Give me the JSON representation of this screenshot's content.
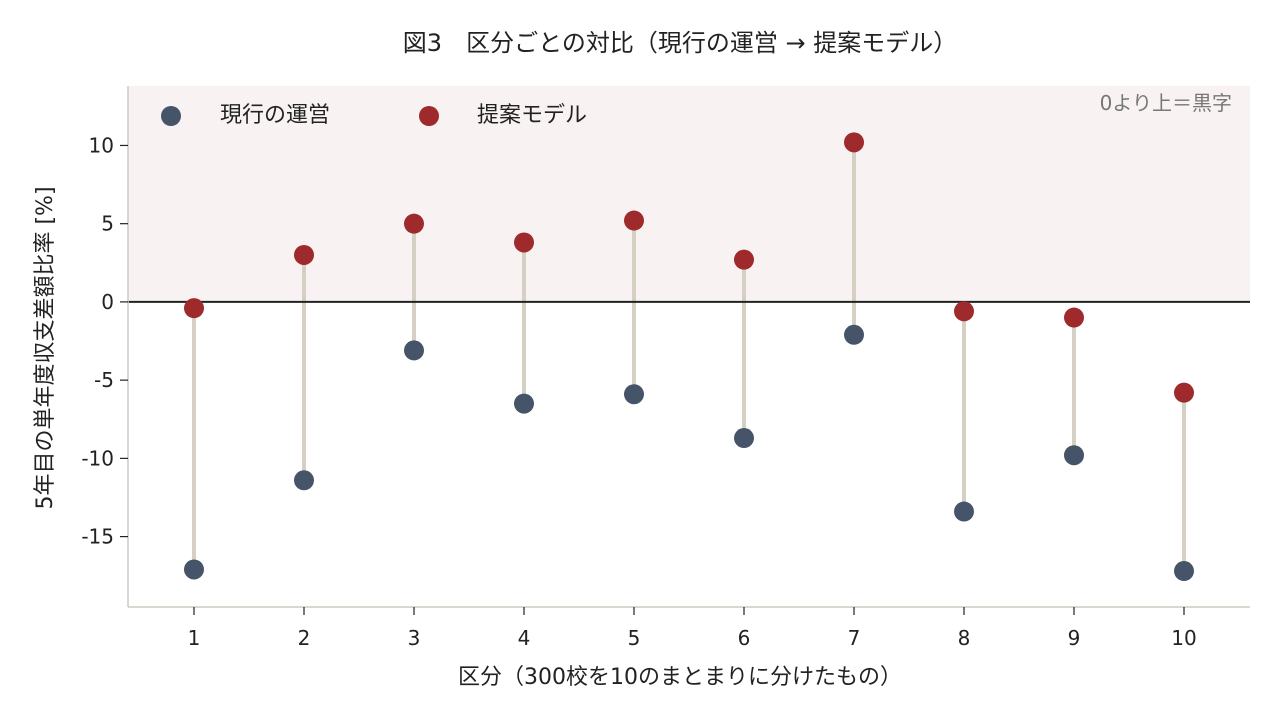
{
  "chart_data": {
    "type": "dumbbell",
    "title": "図3　区分ごとの対比（現行の運営 → 提案モデル）",
    "xlabel": "区分（300校を10のまとまりに分けたもの）",
    "ylabel": "5年目の単年度収支差額比率 [%]",
    "categories": [
      "1",
      "2",
      "3",
      "4",
      "5",
      "6",
      "7",
      "8",
      "9",
      "10"
    ],
    "ylim": [
      -19.5,
      13.8
    ],
    "yticks": [
      10,
      5,
      0,
      -5,
      -10,
      -15
    ],
    "ytick_labels": [
      "10",
      "5",
      "0",
      "-5",
      "-10",
      "-15"
    ],
    "series": [
      {
        "name": "現行の運営",
        "color": "#46546a",
        "values": [
          -17.1,
          -11.4,
          -3.1,
          -6.5,
          -5.9,
          -8.7,
          -2.1,
          -13.4,
          -9.8,
          -17.2
        ]
      },
      {
        "name": "提案モデル",
        "color": "#9e2a2b",
        "values": [
          -0.4,
          3.0,
          5.0,
          3.8,
          5.2,
          2.7,
          10.2,
          -0.6,
          -1.0,
          -5.8
        ]
      }
    ],
    "connector_color": "#d5cfc4",
    "positive_region_color": "#f8f3f2",
    "zero_line_color": "#222222",
    "annotation": "0より上＝黒字",
    "legend_position": "top-left",
    "grid": false
  }
}
